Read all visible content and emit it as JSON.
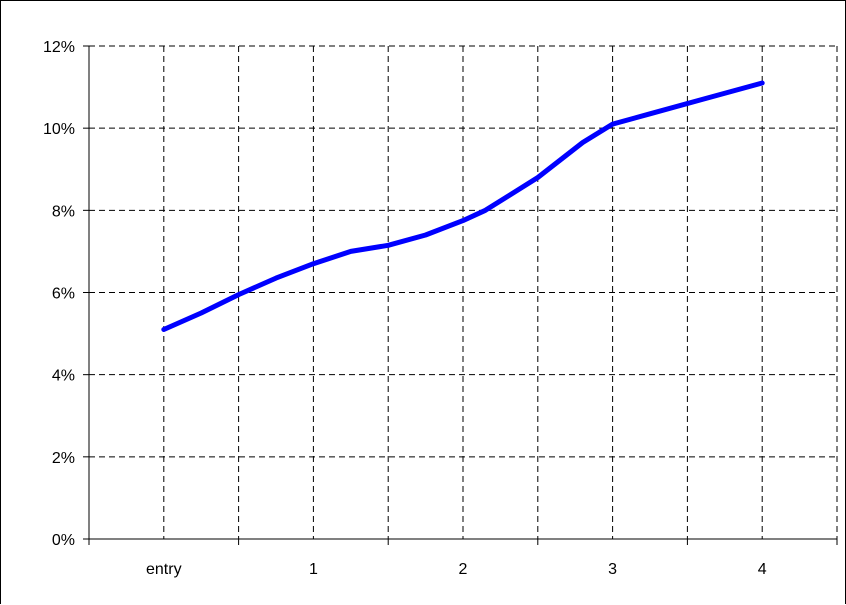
{
  "chart_data": {
    "type": "line",
    "title": "",
    "xlabel": "",
    "ylabel": "",
    "categories": [
      "entry",
      "1",
      "2",
      "3",
      "4"
    ],
    "y_tick_labels": [
      "0%",
      "2%",
      "4%",
      "6%",
      "8%",
      "10%",
      "12%"
    ],
    "ylim": [
      0,
      12
    ],
    "grid": true,
    "legend": "none",
    "series": [
      {
        "color": "#0000ff",
        "x": [
          0,
          0.25,
          0.5,
          0.75,
          1,
          1.25,
          1.5,
          1.75,
          2,
          2.15,
          2.5,
          2.8,
          3,
          3.25,
          3.6,
          4
        ],
        "values": [
          5.1,
          5.5,
          5.95,
          6.35,
          6.7,
          7.0,
          7.15,
          7.4,
          7.75,
          8.0,
          8.8,
          9.65,
          10.1,
          10.35,
          10.7,
          11.1
        ]
      }
    ]
  }
}
